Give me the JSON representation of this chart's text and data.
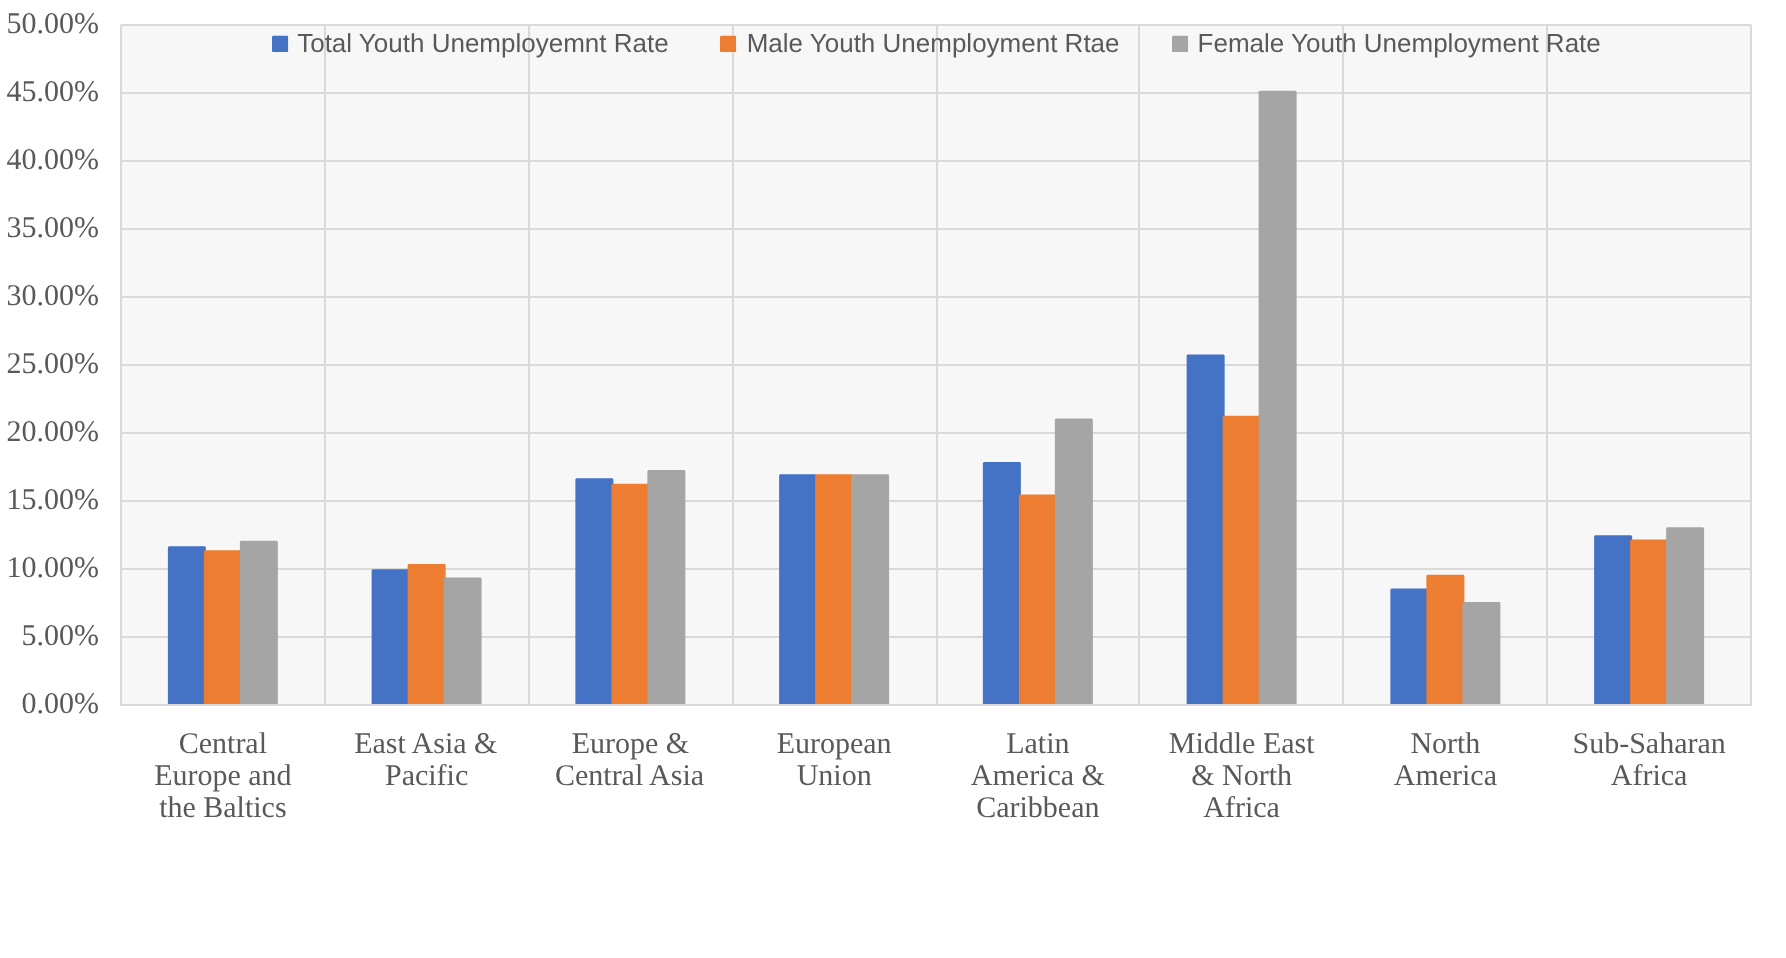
{
  "chart_data": {
    "type": "bar",
    "categories": [
      "Central Europe and the Baltics",
      "East Asia & Pacific",
      "Europe & Central Asia",
      "European Union",
      "Latin America & Caribbean",
      "Middle East & North Africa",
      "North America",
      "Sub-Saharan Africa"
    ],
    "series": [
      {
        "name": "Total Youth Unemployemnt Rate",
        "color": "#4472c4",
        "values": [
          11.6,
          9.9,
          16.6,
          16.9,
          17.8,
          25.7,
          8.5,
          12.4
        ]
      },
      {
        "name": "Male Youth Unemployment Rtae",
        "color": "#ed7d31",
        "values": [
          11.3,
          10.3,
          16.2,
          16.9,
          15.4,
          21.2,
          9.5,
          12.1
        ]
      },
      {
        "name": "Female Youth Unemployment Rate",
        "color": "#a5a5a5",
        "values": [
          12.0,
          9.3,
          17.2,
          16.9,
          21.0,
          45.1,
          7.5,
          13.0
        ]
      }
    ],
    "ylim": [
      0,
      50
    ],
    "yticks": [
      {
        "value": 0,
        "label": "0.00%"
      },
      {
        "value": 5,
        "label": "5.00%"
      },
      {
        "value": 10,
        "label": "10.00%"
      },
      {
        "value": 15,
        "label": "15.00%"
      },
      {
        "value": 20,
        "label": "20.00%"
      },
      {
        "value": 25,
        "label": "25.00%"
      },
      {
        "value": 30,
        "label": "30.00%"
      },
      {
        "value": 35,
        "label": "35.00%"
      },
      {
        "value": 40,
        "label": "40.00%"
      },
      {
        "value": 45,
        "label": "45.00%"
      },
      {
        "value": 50,
        "label": "50.00%"
      }
    ],
    "grid": true,
    "legend": "top"
  }
}
